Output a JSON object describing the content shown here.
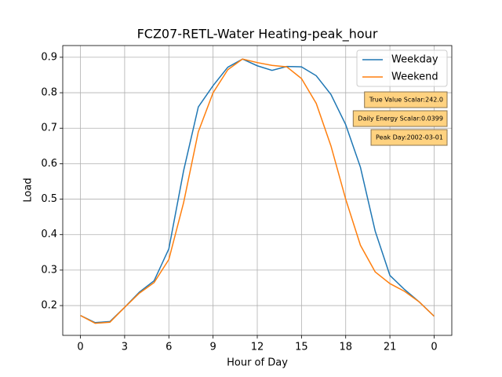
{
  "chart_data": {
    "type": "line",
    "title": "FCZ07-RETL-Water Heating-peak_hour",
    "x_label": "Hour of Day",
    "y_label": "Load",
    "x": [
      0,
      1,
      2,
      3,
      4,
      5,
      6,
      7,
      8,
      9,
      10,
      11,
      12,
      13,
      14,
      15,
      16,
      17,
      18,
      19,
      20,
      21,
      22,
      23,
      24
    ],
    "series": [
      {
        "name": "Weekday",
        "color": "#1f77b4",
        "values": [
          0.172,
          0.152,
          0.155,
          0.195,
          0.238,
          0.27,
          0.36,
          0.58,
          0.76,
          0.82,
          0.872,
          0.895,
          0.876,
          0.863,
          0.874,
          0.873,
          0.848,
          0.795,
          0.71,
          0.59,
          0.41,
          0.285,
          0.245,
          0.21,
          0.17
        ]
      },
      {
        "name": "Weekend",
        "color": "#ff7f0e",
        "values": [
          0.172,
          0.15,
          0.153,
          0.195,
          0.235,
          0.265,
          0.33,
          0.49,
          0.69,
          0.8,
          0.865,
          0.895,
          0.885,
          0.877,
          0.873,
          0.84,
          0.77,
          0.65,
          0.5,
          0.37,
          0.295,
          0.262,
          0.24,
          0.21,
          0.17
        ]
      }
    ],
    "xlim": [
      -1.2,
      25.2
    ],
    "ylim": [
      0.116,
      0.933
    ],
    "xticks": [
      0,
      3,
      6,
      9,
      12,
      15,
      18,
      21,
      {
        "value": 24,
        "label": "0"
      }
    ],
    "yticks": [
      0.2,
      0.3,
      0.4,
      0.5,
      0.6,
      0.7,
      0.8,
      0.9
    ],
    "grid": true,
    "legend": "upper right",
    "annotations": [
      "True Value Scalar:242.0",
      "Daily Energy Scalar:0.0399",
      "Peak Day:2002-03-01"
    ]
  }
}
